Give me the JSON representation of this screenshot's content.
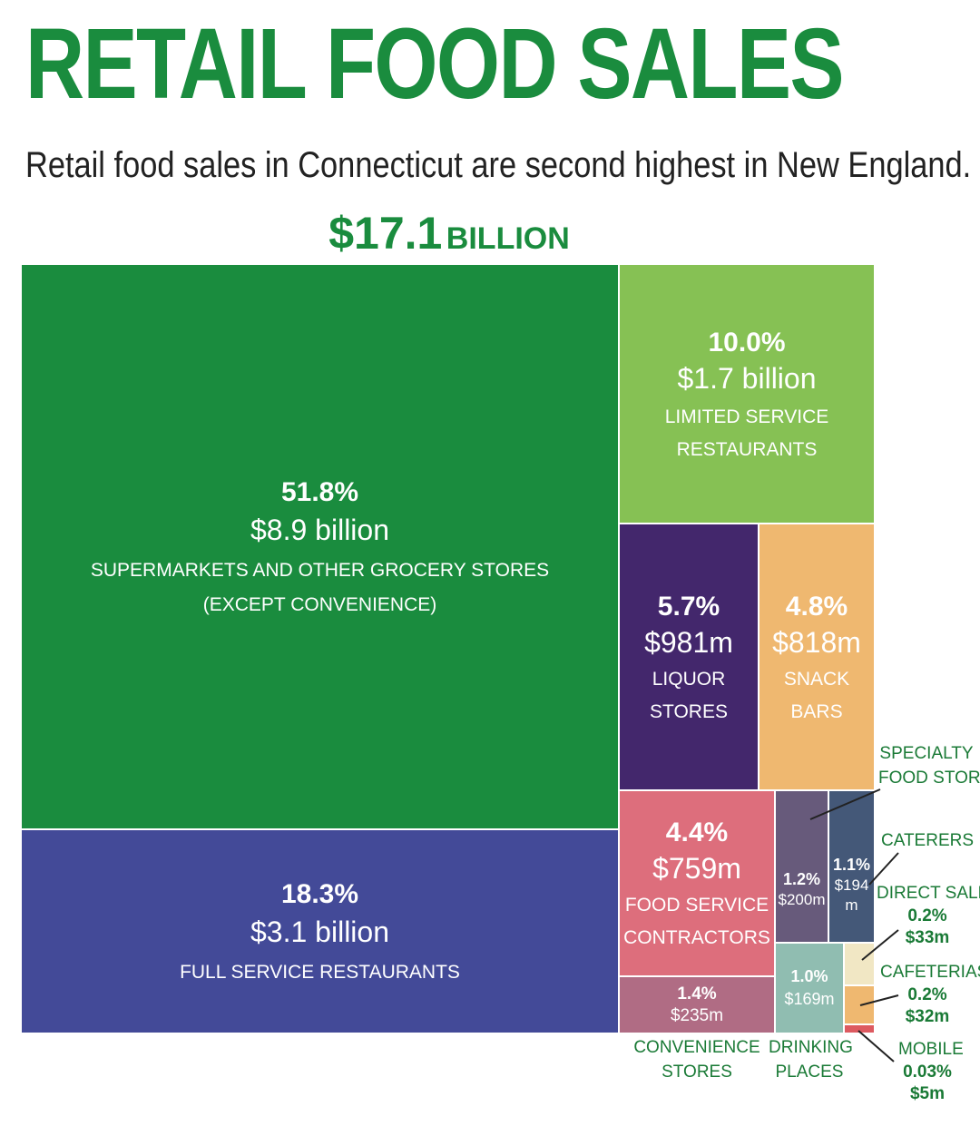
{
  "title": "RETAIL FOOD SALES",
  "subtitle": "Retail food sales in Connecticut are second highest in New England.",
  "total": {
    "amount": "$17.1",
    "unit": "BILLION"
  },
  "chart_data": {
    "type": "treemap",
    "title": "RETAIL FOOD SALES",
    "total": "$17.1 BILLION",
    "items": [
      {
        "id": "supermarkets",
        "pct_label": "51.8%",
        "value_label": "$8.9 billion",
        "name_line1": "SUPERMARKETS AND OTHER GROCERY STORES",
        "name_line2": "(EXCEPT CONVENIENCE)",
        "pct": 51.8,
        "value_m": 8900,
        "color": "#1a8c3e"
      },
      {
        "id": "full-service",
        "pct_label": "18.3%",
        "value_label": "$3.1 billion",
        "name_line1": "FULL SERVICE RESTAURANTS",
        "pct": 18.3,
        "value_m": 3100,
        "color": "#434a98"
      },
      {
        "id": "limited-service",
        "pct_label": "10.0%",
        "value_label": "$1.7 billion",
        "name_line1": "LIMITED SERVICE",
        "name_line2": "RESTAURANTS",
        "pct": 10.0,
        "value_m": 1700,
        "color": "#86c154"
      },
      {
        "id": "liquor",
        "pct_label": "5.7%",
        "value_label": "$981m",
        "name_line1": "LIQUOR",
        "name_line2": "STORES",
        "pct": 5.7,
        "value_m": 981,
        "color": "#43276c"
      },
      {
        "id": "snack-bars",
        "pct_label": "4.8%",
        "value_label": "$818m",
        "name_line1": "SNACK",
        "name_line2": "BARS",
        "pct": 4.8,
        "value_m": 818,
        "color": "#efb870"
      },
      {
        "id": "food-service-contractors",
        "pct_label": "4.4%",
        "value_label": "$759m",
        "name_line1": "FOOD SERVICE",
        "name_line2": "CONTRACTORS",
        "pct": 4.4,
        "value_m": 759,
        "color": "#dd6e7c"
      },
      {
        "id": "convenience",
        "pct_label": "1.4%",
        "value_label": "$235m",
        "name_line1": "CONVENIENCE",
        "name_line2": "STORES",
        "pct": 1.4,
        "value_m": 235,
        "color": "#b06c84"
      },
      {
        "id": "specialty",
        "pct_label": "1.2%",
        "value_label": "$200m",
        "name_line1": "SPECIALTY",
        "name_line2": "FOOD STORES",
        "pct": 1.2,
        "value_m": 200,
        "color": "#675a7b"
      },
      {
        "id": "caterers",
        "pct_label": "1.1%",
        "value_label_1": "$194",
        "value_label_2": "m",
        "name_line1": "CATERERS",
        "pct": 1.1,
        "value_m": 194,
        "color": "#445878"
      },
      {
        "id": "drinking",
        "pct_label": "1.0%",
        "value_label": "$169m",
        "name_line1": "DRINKING",
        "name_line2": "PLACES",
        "pct": 1.0,
        "value_m": 169,
        "color": "#90bdb1"
      },
      {
        "id": "direct-sales",
        "pct_label": "0.2%",
        "value_label": "$33m",
        "name_line1": "DIRECT SALES",
        "pct": 0.2,
        "value_m": 33,
        "color": "#f1e7c4"
      },
      {
        "id": "cafeterias",
        "pct_label": "0.2%",
        "value_label": "$32m",
        "name_line1": "CAFETERIAS",
        "pct": 0.2,
        "value_m": 32,
        "color": "#efb870"
      },
      {
        "id": "mobile",
        "pct_label": "0.03%",
        "value_label": "$5m",
        "name_line1": "MOBILE",
        "pct": 0.03,
        "value_m": 5,
        "color": "#dd5a60"
      }
    ]
  }
}
